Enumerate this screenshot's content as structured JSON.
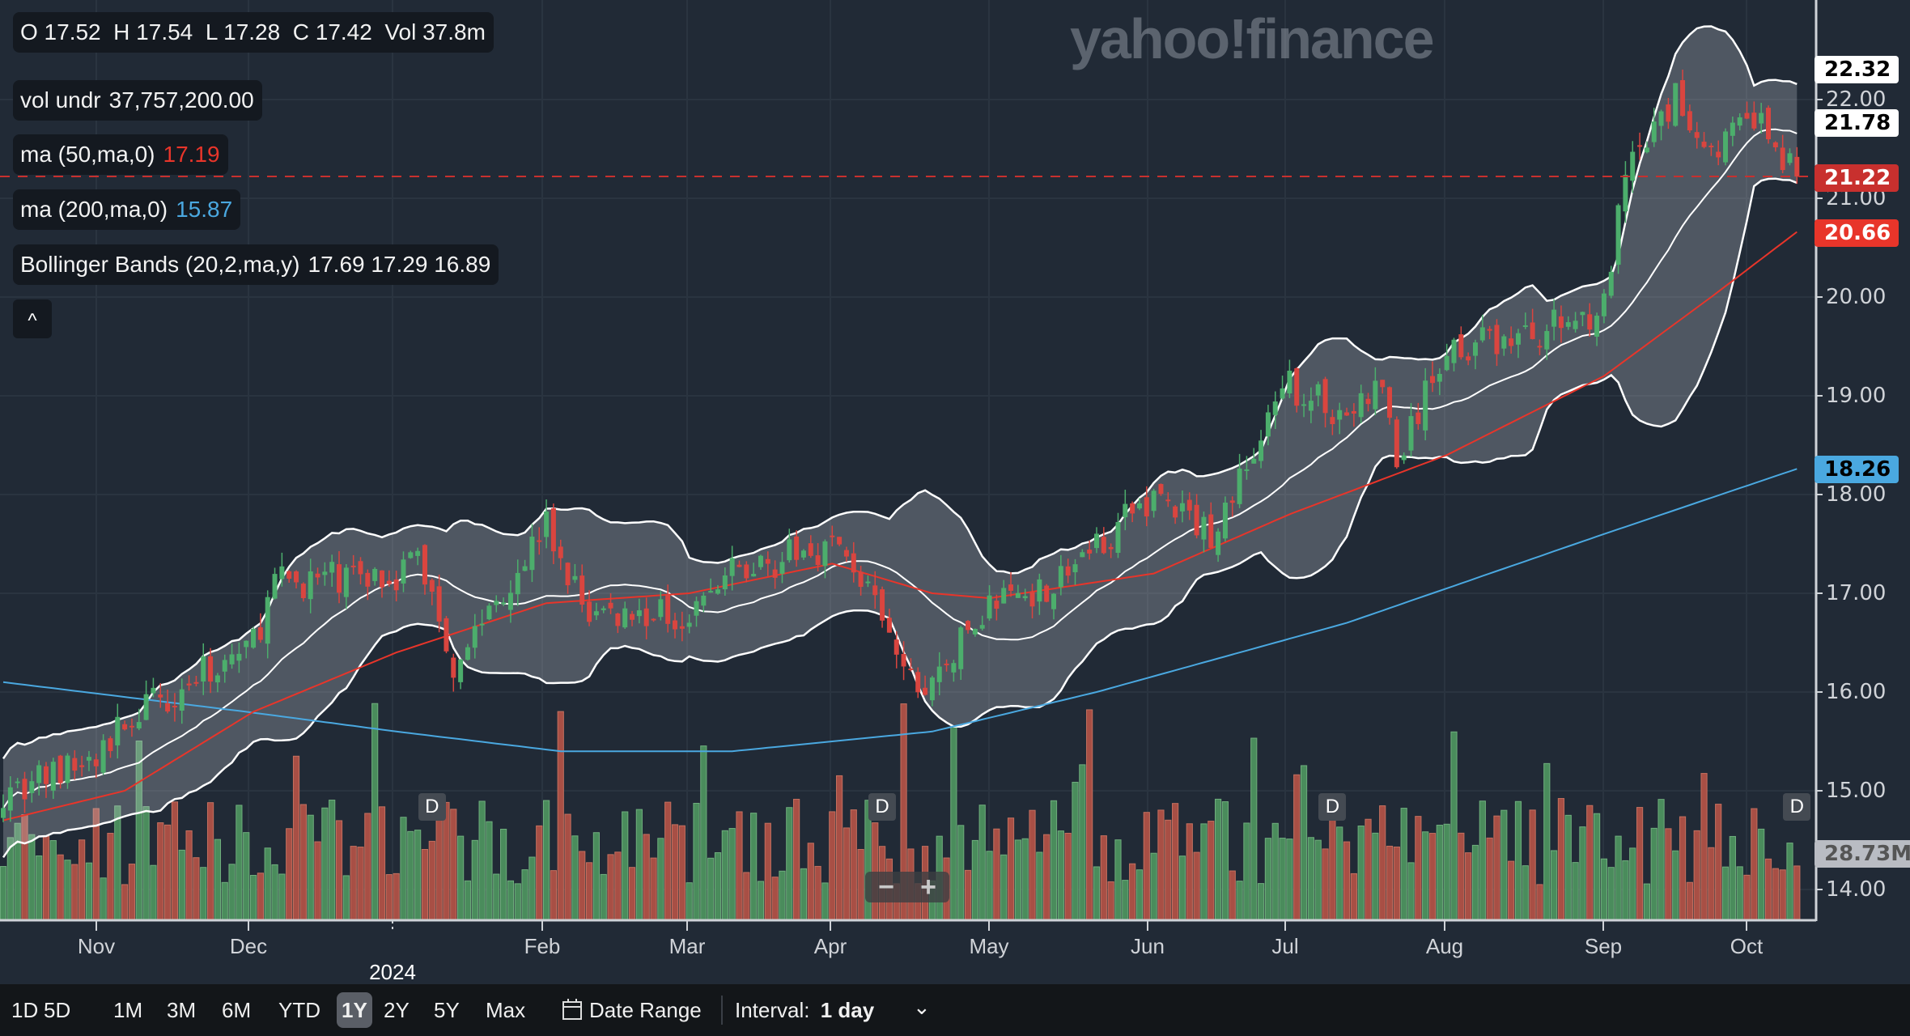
{
  "watermark": "yahoo!finance",
  "legend": {
    "ohlc": "O 17.52  H 17.54  L 17.28  C 17.42  Vol 37.8m",
    "vol_label": "vol undr",
    "vol_value": "37,757,200.00",
    "ma50_label": "ma (50,ma,0)",
    "ma50_value": "17.19",
    "ma200_label": "ma (200,ma,0)",
    "ma200_value": "15.87",
    "bb_label": "Bollinger Bands (20,2,ma,y)",
    "bb_value": "17.69 17.29 16.89",
    "collapse": "^"
  },
  "y_axis": [
    "22.00",
    "21.00",
    "20.00",
    "19.00",
    "18.00",
    "17.00",
    "16.00",
    "15.00",
    "14.00"
  ],
  "price_tags": {
    "bb_upper": "22.32",
    "bb_mid": "21.78",
    "last": "21.22",
    "ma50": "20.66",
    "ma200": "18.26",
    "volume": "28.73M"
  },
  "x_axis": [
    "Nov",
    "Dec",
    "",
    "Feb",
    "Mar",
    "Apr",
    "May",
    "Jun",
    "Jul",
    "Aug",
    "Sep",
    "Oct"
  ],
  "year_label": "2024",
  "dividend_marker": "D",
  "zoom": {
    "minus": "−",
    "plus": "+"
  },
  "bottom": {
    "ranges": [
      "1D",
      "5D",
      "1M",
      "3M",
      "6M",
      "YTD",
      "1Y",
      "2Y",
      "5Y",
      "Max"
    ],
    "active_range": "1Y",
    "date_range": "Date Range",
    "interval_label": "Interval:",
    "interval_value": "1 day",
    "chevron": "⌄"
  },
  "colors": {
    "up": "#4cae6c",
    "down": "#d9453f",
    "vol_up": "#4a8c5c",
    "vol_down": "#a84f45",
    "ma50": "#e8352a",
    "ma200": "#4aa8e0",
    "band": "#ffffff"
  },
  "chart_data": {
    "type": "candlestick",
    "days": 252,
    "close_keypoints": [
      [
        0,
        15.0
      ],
      [
        13,
        15.3
      ],
      [
        17,
        15.7
      ],
      [
        35,
        16.5
      ],
      [
        38,
        17.1
      ],
      [
        55,
        17.2
      ],
      [
        58,
        17.4
      ],
      [
        63,
        16.3
      ],
      [
        76,
        17.7
      ],
      [
        78,
        17.3
      ],
      [
        82,
        16.8
      ],
      [
        96,
        16.8
      ],
      [
        102,
        17.2
      ],
      [
        116,
        17.5
      ],
      [
        119,
        17.3
      ],
      [
        126,
        16.2
      ],
      [
        129,
        16.0
      ],
      [
        138,
        16.9
      ],
      [
        147,
        17.1
      ],
      [
        161,
        18.0
      ],
      [
        169,
        17.6
      ],
      [
        180,
        19.1
      ],
      [
        188,
        18.8
      ],
      [
        193,
        19.1
      ],
      [
        195,
        18.3
      ],
      [
        202,
        19.5
      ],
      [
        213,
        19.6
      ],
      [
        224,
        19.9
      ],
      [
        227,
        21.2
      ],
      [
        234,
        22.0
      ],
      [
        239,
        21.5
      ],
      [
        245,
        21.8
      ],
      [
        251,
        21.22
      ]
    ],
    "ma50_keypoints": [
      [
        0,
        14.7
      ],
      [
        17,
        15.0
      ],
      [
        35,
        15.8
      ],
      [
        55,
        16.4
      ],
      [
        76,
        16.9
      ],
      [
        96,
        17.0
      ],
      [
        116,
        17.3
      ],
      [
        130,
        17.0
      ],
      [
        138,
        16.95
      ],
      [
        161,
        17.2
      ],
      [
        180,
        17.8
      ],
      [
        202,
        18.4
      ],
      [
        224,
        19.2
      ],
      [
        239,
        20.0
      ],
      [
        251,
        20.66
      ]
    ],
    "ma200_keypoints": [
      [
        0,
        16.1
      ],
      [
        34,
        15.8
      ],
      [
        55,
        15.6
      ],
      [
        78,
        15.4
      ],
      [
        102,
        15.4
      ],
      [
        130,
        15.6
      ],
      [
        153,
        16.0
      ],
      [
        188,
        16.7
      ],
      [
        224,
        17.6
      ],
      [
        251,
        18.26
      ]
    ],
    "dividend_days": [
      60,
      123,
      186,
      251
    ],
    "ylim": [
      13.7,
      23.5
    ],
    "last_volume_m": 28.73
  }
}
